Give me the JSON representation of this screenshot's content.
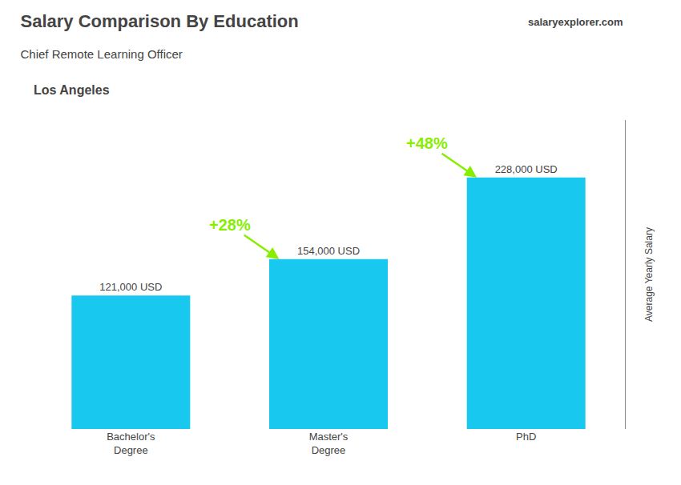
{
  "chart_data": {
    "type": "bar",
    "title": "Salary Comparison By Education",
    "subtitle": "Chief Remote Learning Officer",
    "ylabel": "Average Yearly Salary",
    "categories": [
      "Bachelor's\nDegree",
      "Master's\nDegree",
      "PhD"
    ],
    "values": [
      121000,
      154000,
      228000
    ],
    "value_labels": [
      "121,000 USD",
      "154,000 USD",
      "228,000 USD"
    ],
    "data_labels": true,
    "color": "#18C8EE",
    "ylim": [
      0,
      280000
    ],
    "grid": false,
    "tick_labels": "x",
    "annotations": [
      {
        "text": "Los Angeles"
      },
      {
        "text": "salaryexplorer.com"
      },
      {
        "text": "+28%",
        "between": [
          0,
          1
        ],
        "color": "#88EE00"
      },
      {
        "text": "+48%",
        "between": [
          1,
          2
        ],
        "color": "#88EE00"
      }
    ]
  }
}
